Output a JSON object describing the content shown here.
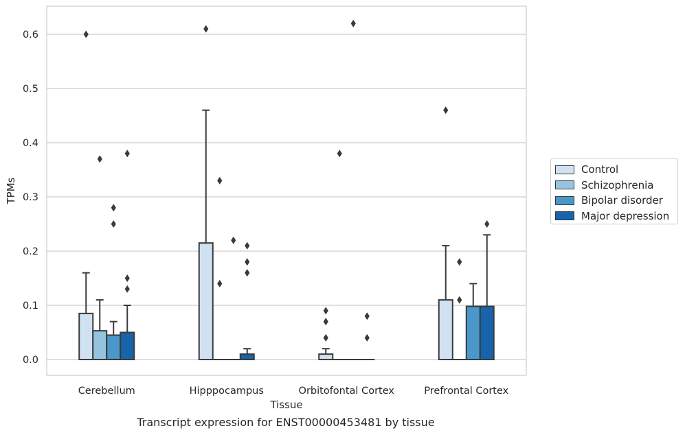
{
  "chart_data": {
    "type": "box",
    "xlabel": "Tissue",
    "ylabel": "TPMs",
    "caption": "Transcript expression for ENST00000453481 by tissue",
    "categories": [
      "Cerebellum",
      "Hipppocampus",
      "Orbitofontal Cortex",
      "Prefrontal Cortex"
    ],
    "ylim": [
      -0.03,
      0.65
    ],
    "yticks": [
      0.0,
      0.1,
      0.2,
      0.3,
      0.4,
      0.5,
      0.6
    ],
    "ytick_labels": [
      "0.0",
      "0.1",
      "0.2",
      "0.3",
      "0.4",
      "0.5",
      "0.6"
    ],
    "grid": true,
    "legend_position": "right",
    "series": [
      {
        "name": "Control",
        "color": "#d0e1f2",
        "boxes": [
          {
            "q1": 0.0,
            "median": 0.0,
            "q3": 0.085,
            "whisker_low": 0.0,
            "whisker_high": 0.16,
            "outliers": [
              0.6
            ]
          },
          {
            "q1": 0.0,
            "median": 0.0,
            "q3": 0.215,
            "whisker_low": 0.0,
            "whisker_high": 0.46,
            "outliers": [
              0.61
            ]
          },
          {
            "q1": 0.0,
            "median": 0.0,
            "q3": 0.01,
            "whisker_low": 0.0,
            "whisker_high": 0.02,
            "outliers": [
              0.04,
              0.07,
              0.09
            ]
          },
          {
            "q1": 0.0,
            "median": 0.0,
            "q3": 0.11,
            "whisker_low": 0.0,
            "whisker_high": 0.21,
            "outliers": [
              0.46
            ]
          }
        ]
      },
      {
        "name": "Schizophrenia",
        "color": "#94c4df",
        "boxes": [
          {
            "q1": 0.0,
            "median": 0.0,
            "q3": 0.053,
            "whisker_low": 0.0,
            "whisker_high": 0.11,
            "outliers": [
              0.37
            ]
          },
          {
            "q1": 0.0,
            "median": 0.0,
            "q3": 0.0,
            "whisker_low": 0.0,
            "whisker_high": 0.0,
            "outliers": [
              0.14,
              0.33
            ]
          },
          {
            "q1": 0.0,
            "median": 0.0,
            "q3": 0.0,
            "whisker_low": 0.0,
            "whisker_high": 0.0,
            "outliers": [
              0.38
            ]
          },
          {
            "q1": 0.0,
            "median": 0.0,
            "q3": 0.0,
            "whisker_low": 0.0,
            "whisker_high": 0.0,
            "outliers": [
              0.11,
              0.18
            ]
          }
        ]
      },
      {
        "name": "Bipolar disorder",
        "color": "#4a98c9",
        "boxes": [
          {
            "q1": 0.0,
            "median": 0.0,
            "q3": 0.045,
            "whisker_low": 0.0,
            "whisker_high": 0.07,
            "outliers": [
              0.25,
              0.28
            ]
          },
          {
            "q1": 0.0,
            "median": 0.0,
            "q3": 0.0,
            "whisker_low": 0.0,
            "whisker_high": 0.0,
            "outliers": [
              0.22
            ]
          },
          {
            "q1": 0.0,
            "median": 0.0,
            "q3": 0.0,
            "whisker_low": 0.0,
            "whisker_high": 0.0,
            "outliers": [
              0.62
            ]
          },
          {
            "q1": 0.0,
            "median": 0.0,
            "q3": 0.098,
            "whisker_low": 0.0,
            "whisker_high": 0.14,
            "outliers": []
          }
        ]
      },
      {
        "name": "Major depression",
        "color": "#1764ab",
        "boxes": [
          {
            "q1": 0.0,
            "median": 0.0,
            "q3": 0.05,
            "whisker_low": 0.0,
            "whisker_high": 0.1,
            "outliers": [
              0.13,
              0.15,
              0.38
            ]
          },
          {
            "q1": 0.0,
            "median": 0.0,
            "q3": 0.01,
            "whisker_low": 0.0,
            "whisker_high": 0.02,
            "outliers": [
              0.16,
              0.18,
              0.21
            ]
          },
          {
            "q1": 0.0,
            "median": 0.0,
            "q3": 0.0,
            "whisker_low": 0.0,
            "whisker_high": 0.0,
            "outliers": [
              0.04,
              0.08
            ]
          },
          {
            "q1": 0.0,
            "median": 0.0,
            "q3": 0.098,
            "whisker_low": 0.0,
            "whisker_high": 0.23,
            "outliers": [
              0.25
            ]
          }
        ]
      }
    ]
  }
}
